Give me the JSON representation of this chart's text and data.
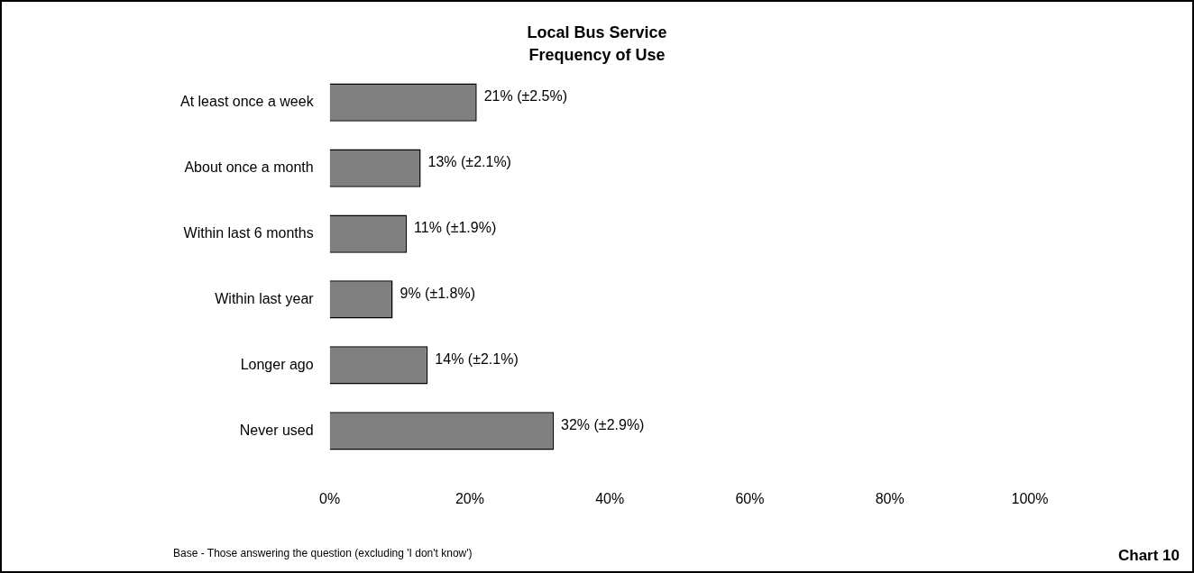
{
  "chart_data": {
    "type": "bar",
    "orientation": "horizontal",
    "title": "Local Bus Service",
    "subtitle": "Frequency of Use",
    "categories": [
      "At least once a week",
      "About once a month",
      "Within last 6 months",
      "Within last year",
      "Longer ago",
      "Never used"
    ],
    "values": [
      21,
      13,
      11,
      9,
      14,
      32
    ],
    "value_labels": [
      "21% (±2.5%)",
      "13% (±2.1%)",
      "11% (±1.9%)",
      "9% (±1.8%)",
      "14% (±2.1%)",
      "32% (±2.9%)"
    ],
    "color": "#808080",
    "xlim": [
      0,
      100
    ],
    "xticks": [
      {
        "value": 0,
        "label": "0%"
      },
      {
        "value": 20,
        "label": "20%"
      },
      {
        "value": 40,
        "label": "40%"
      },
      {
        "value": 60,
        "label": "60%"
      },
      {
        "value": 80,
        "label": "80%"
      },
      {
        "value": 100,
        "label": "100%"
      }
    ],
    "grid": false,
    "legend": false,
    "annotations": [
      "Base - Those answering the question (excluding 'I don't know')",
      "Chart 10"
    ]
  }
}
